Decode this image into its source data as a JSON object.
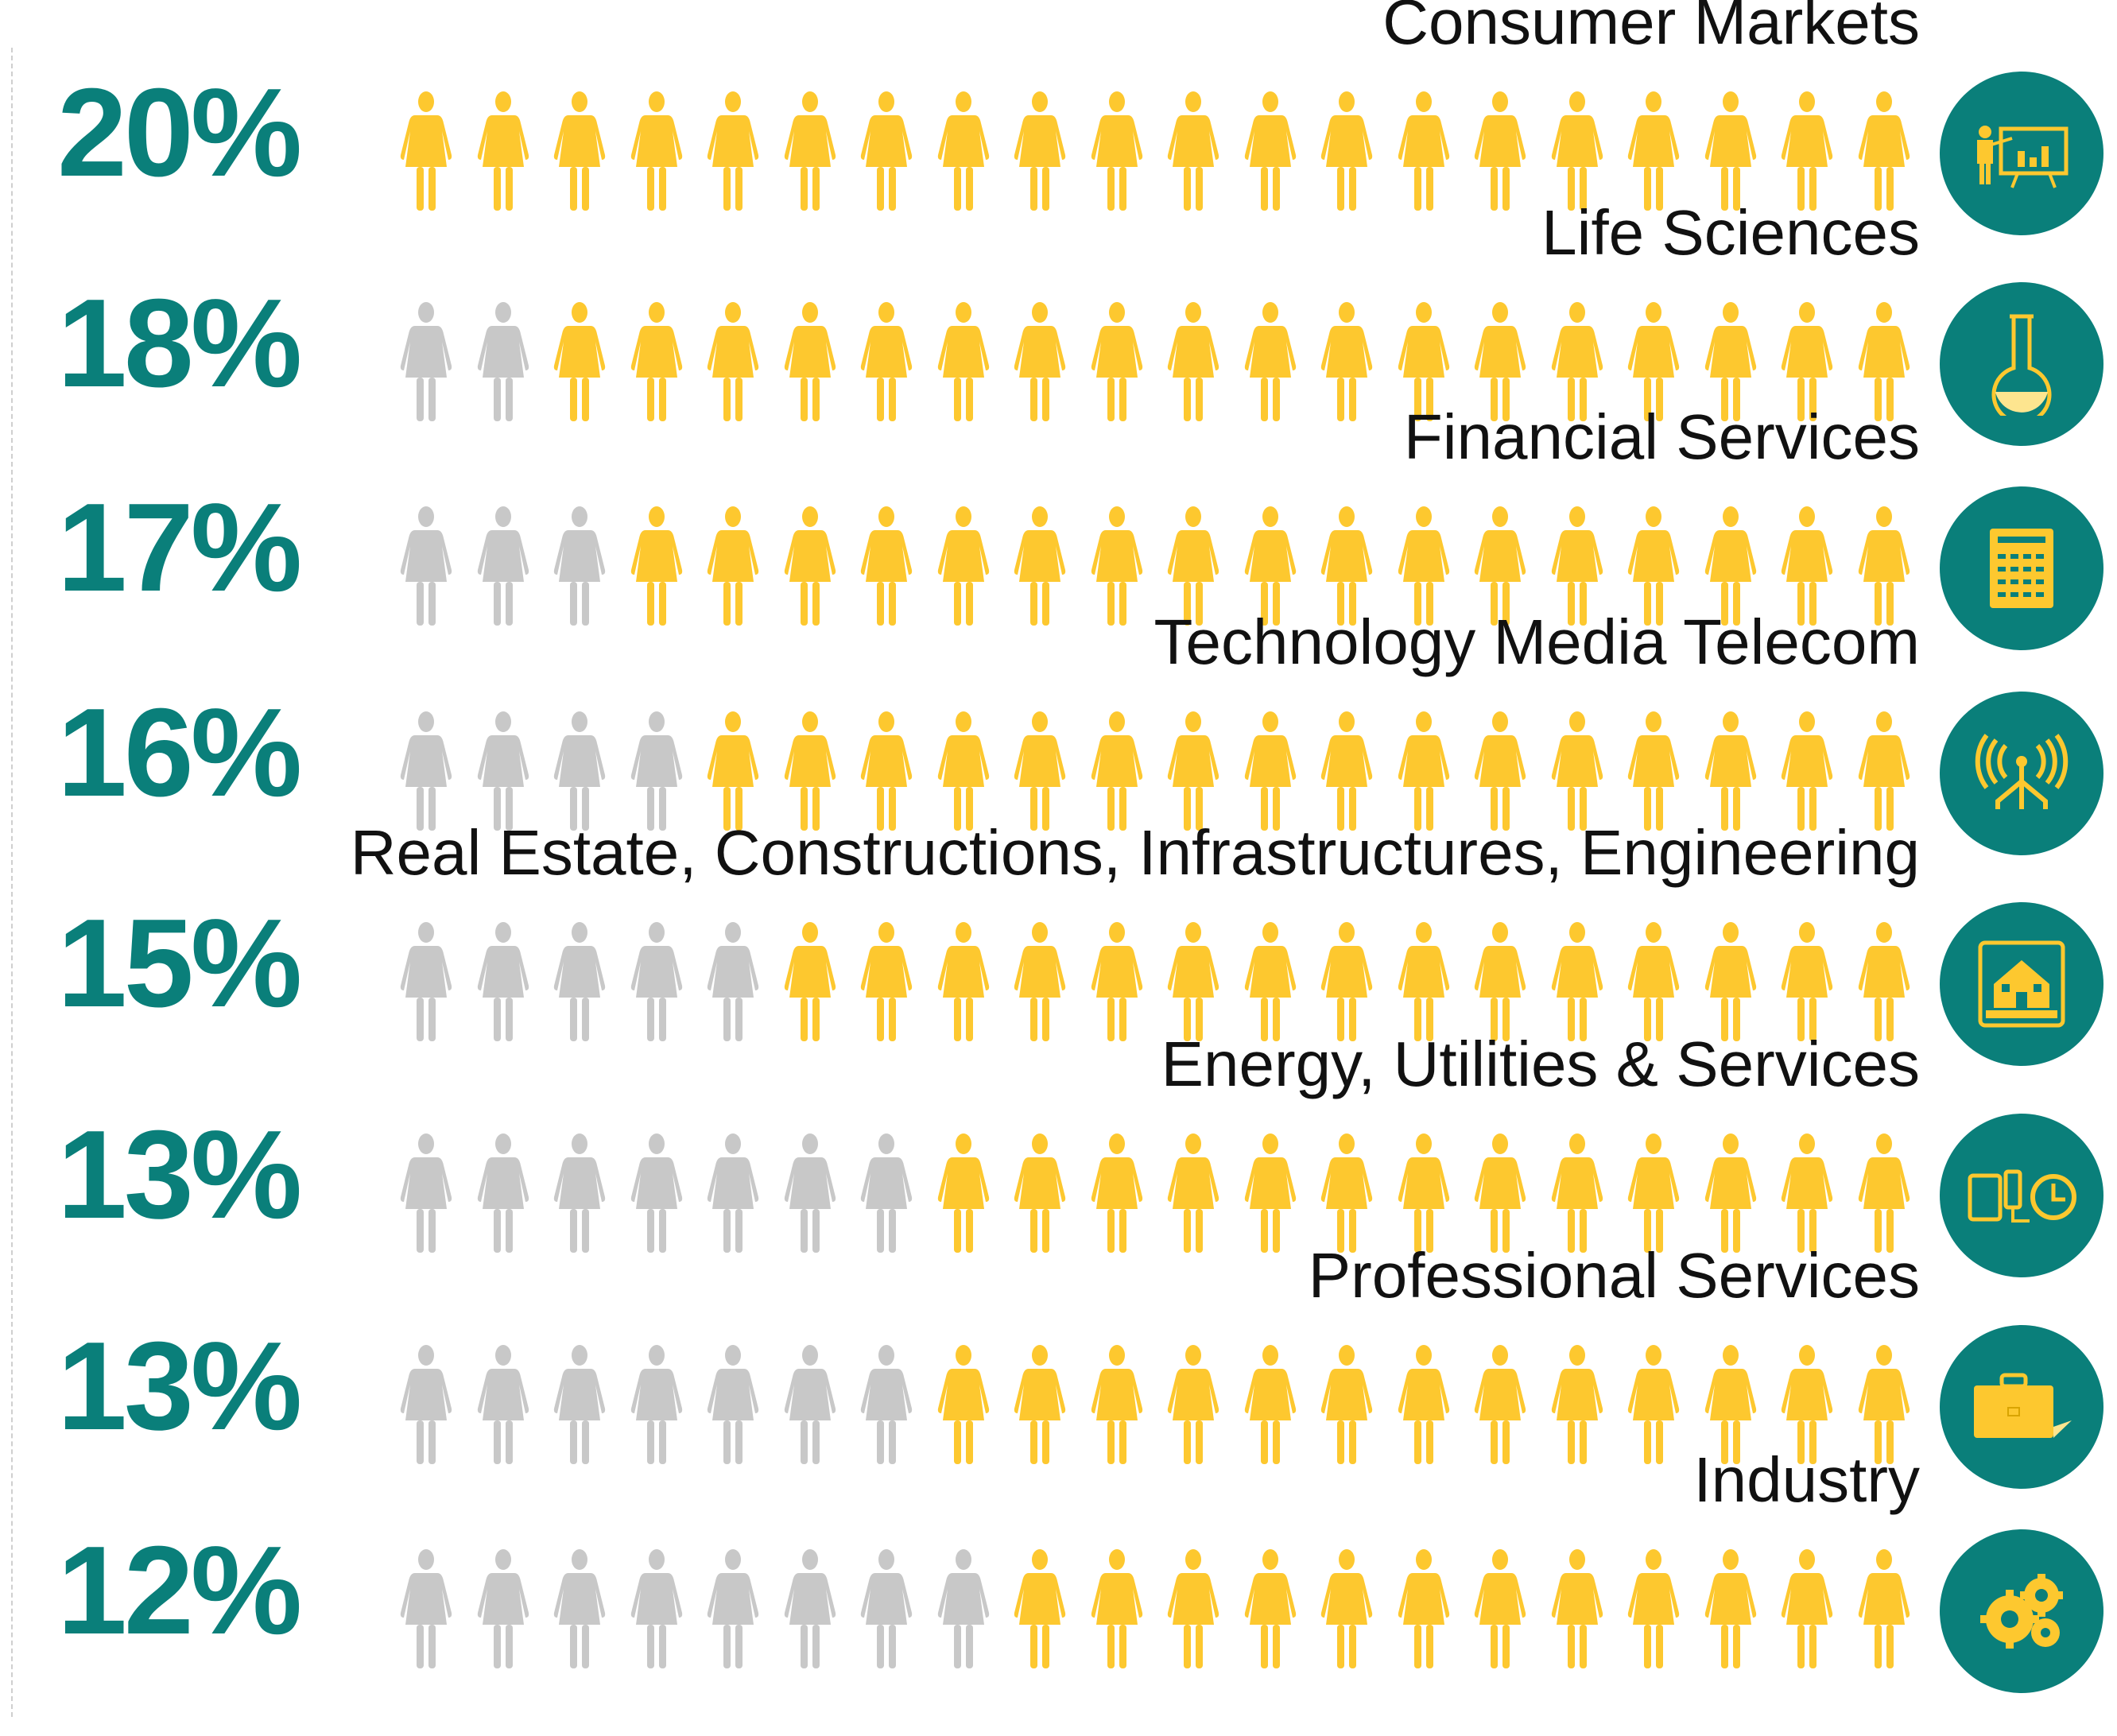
{
  "colors": {
    "accent": "#0a7f7a",
    "filled": "#fdc82f",
    "empty": "#c8c8c8"
  },
  "chart_data": {
    "type": "pictogram",
    "icons_per_row": 20,
    "categories": [
      "Consumer Markets",
      "Life Sciences",
      "Financial Services",
      "Technology Media Telecom",
      "Real Estate, Constructions, Infrastructures, Engineering",
      "Energy, Utilities & Services",
      "Professional Services",
      "Industry"
    ],
    "values": [
      20,
      18,
      17,
      16,
      15,
      13,
      13,
      12
    ],
    "labels": [
      "20%",
      "18%",
      "17%",
      "16%",
      "15%",
      "13%",
      "13%",
      "12%"
    ],
    "icons": [
      "presentation-icon",
      "flask-icon",
      "calculator-icon",
      "antenna-icon",
      "house-icon",
      "energy-icon",
      "briefcase-icon",
      "gears-icon"
    ]
  }
}
